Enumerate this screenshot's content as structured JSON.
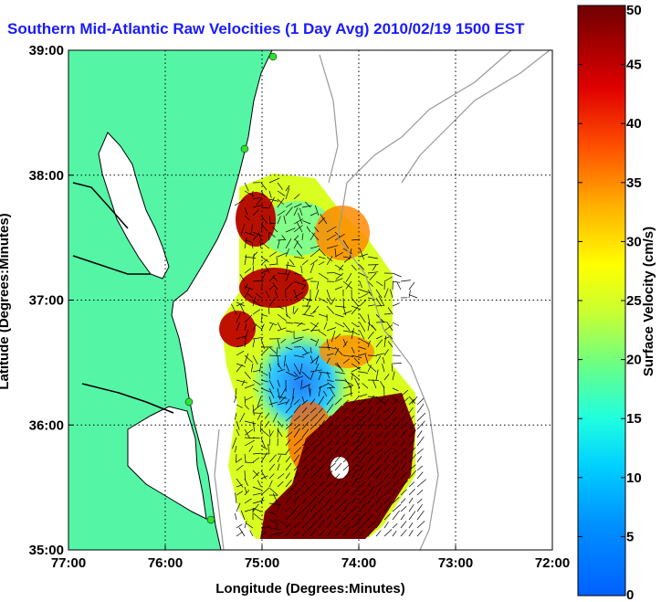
{
  "title": "Southern Mid-Atlantic Raw Velocities (1 Day Avg) 2010/02/19 1500 EST",
  "chart_data": {
    "type": "heatmap",
    "title": "Southern Mid-Atlantic Raw Velocities (1 Day Avg) 2010/02/19 1500 EST",
    "xlabel": "Longitude (Degrees:Minutes)",
    "ylabel": "Latitude (Degrees:Minutes)",
    "x_ticks": [
      "77:00",
      "76:00",
      "75:00",
      "74:00",
      "73:00",
      "72:00"
    ],
    "y_ticks": [
      "39:00",
      "38:00",
      "37:00",
      "36:00",
      "35:00"
    ],
    "xlim": [
      -77,
      -72
    ],
    "ylim": [
      35,
      39
    ],
    "grid": true,
    "colorbar": {
      "label": "Surface Velocity (cm/s)",
      "range": [
        0,
        50
      ],
      "ticks": [
        "0",
        "5",
        "10",
        "15",
        "20",
        "25",
        "30",
        "35",
        "40",
        "45",
        "50"
      ]
    }
  },
  "colors": {
    "title": "#1a1aff",
    "land": "#55f5a6",
    "grid": "#000000",
    "bathymetry": "#999999"
  }
}
